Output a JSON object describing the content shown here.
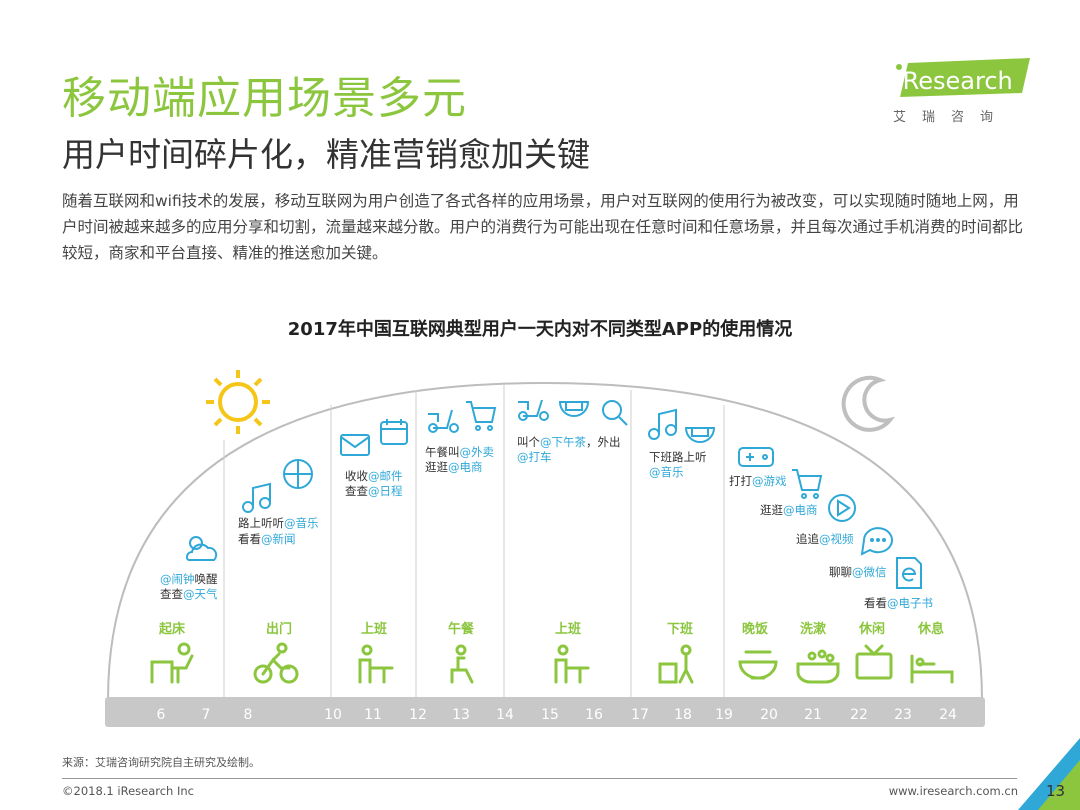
{
  "header": {
    "title": "移动端应用场景多元",
    "subtitle": "用户时间碎片化，精准营销愈加关键",
    "intro": "随着互联网和wifi技术的发展，移动互联网为用户创造了各式各样的应用场景，用户对互联网的使用行为被改变，可以实现随时随地上网，用户时间被越来越多的应用分享和切割，流量越来越分散。用户的消费行为可能出现在任意时间和任意场景，并且每次通过手机消费的时间都比较短，商家和平台直接、精准的推送愈加关键。"
  },
  "logo": {
    "brand": "iResearch",
    "chinese": "艾瑞咨询"
  },
  "chart": {
    "title": "2017年中国互联网典型用户一天内对不同类型APP的使用情况",
    "hours": [
      "6",
      "7",
      "8",
      "10",
      "11",
      "12",
      "13",
      "14",
      "15",
      "16",
      "17",
      "18",
      "19",
      "20",
      "21",
      "22",
      "23",
      "24"
    ],
    "activities": [
      "起床",
      "出门",
      "上班",
      "午餐",
      "上班",
      "下班",
      "晚饭",
      "洗漱",
      "休闲",
      "休息"
    ],
    "usages": {
      "wake": {
        "a1": "@闹钟",
        "b1": "唤醒",
        "b2": "查查",
        "a2": "@天气"
      },
      "commute": {
        "b1": "路上听听",
        "a1": "@音乐",
        "b2": "看看",
        "a2": "@新闻"
      },
      "work": {
        "b1": "收收",
        "a1": "@邮件",
        "b2": "查查",
        "a2": "@日程"
      },
      "lunch": {
        "b1": "午餐叫",
        "a1": "@外卖",
        "b2": "逛逛",
        "a2": "@电商"
      },
      "afternoon": {
        "b1": "叫个",
        "a1": "@下午茶",
        "b1b": "，外出",
        "a2": "@打车"
      },
      "offwork": {
        "b1": "下班路上听",
        "a1": "@音乐"
      },
      "game": {
        "b": "打打",
        "a": "@游戏"
      },
      "shop": {
        "b": "逛逛",
        "a": "@电商"
      },
      "video": {
        "b": "追追",
        "a": "@视频"
      },
      "chat": {
        "b": "聊聊",
        "a": "@微信"
      },
      "ebook": {
        "b": "看看",
        "a": "@电子书"
      }
    }
  },
  "footer": {
    "source": "来源：艾瑞咨询研究院自主研究及绘制。",
    "copyright": "©2018.1 iResearch Inc",
    "website": "www.iresearch.com.cn",
    "page": "13"
  },
  "colors": {
    "green": "#8cc63f",
    "blue": "#2fa8d8",
    "sun": "#f5c518",
    "moon": "#bfbfbf",
    "band": "#c8c8c8"
  }
}
